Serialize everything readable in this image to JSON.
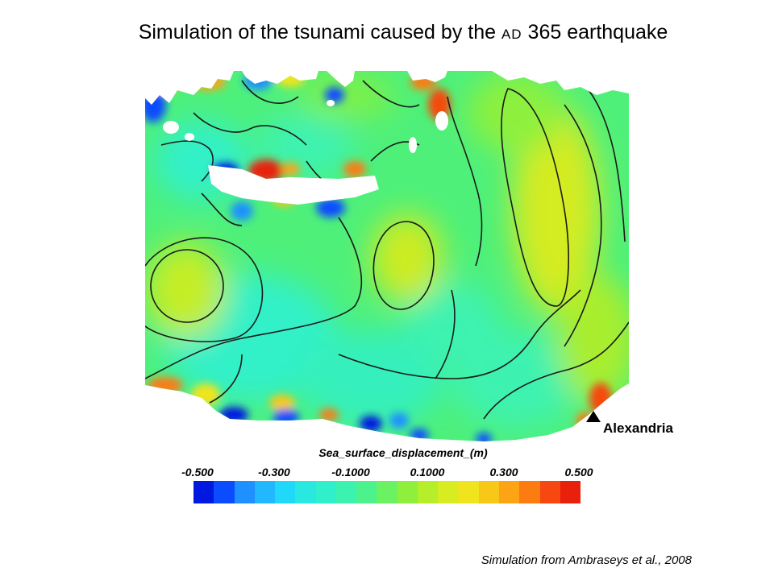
{
  "title": {
    "prefix": "Simulation of the tsunami caused by the ",
    "era": "AD",
    "suffix": " 365 earthquake"
  },
  "map": {
    "place_label": "Alexandria",
    "marker_icon": "black-triangle-marker"
  },
  "legend": {
    "title": "Sea_surface_displacement_(m)",
    "ticks": [
      "-0.500",
      "-0.300",
      "-0.1000",
      "0.1000",
      "0.300",
      "0.500"
    ],
    "range": [
      -0.5,
      0.5
    ],
    "colors": [
      "#0018e0",
      "#0a4cff",
      "#1e90ff",
      "#22b8ff",
      "#20d8f8",
      "#28e8e0",
      "#30f0cc",
      "#3cf2b0",
      "#4cf28c",
      "#6af262",
      "#8ef03c",
      "#b6ee2a",
      "#d8ec22",
      "#f0e41e",
      "#f8c818",
      "#fca414",
      "#fc7c12",
      "#f64810",
      "#e8200c"
    ]
  },
  "credit": "Simulation from Ambraseys et al., 2008"
}
